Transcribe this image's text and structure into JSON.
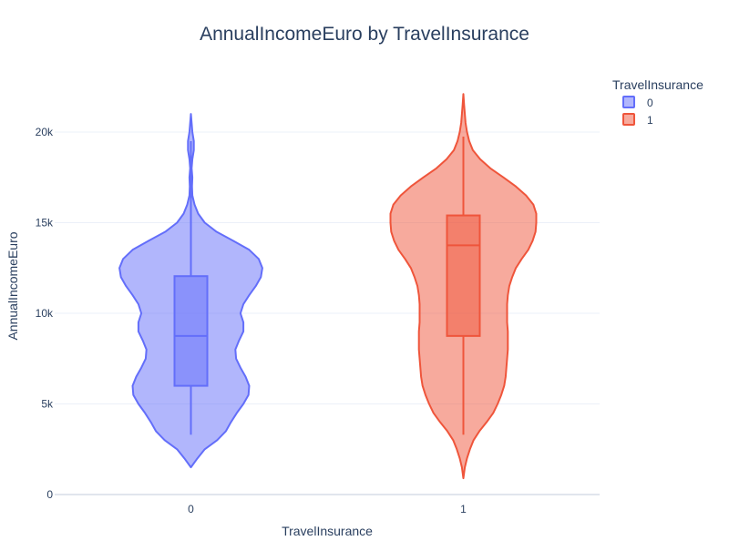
{
  "chart_data": {
    "type": "violin",
    "title": "AnnualIncomeEuro by TravelInsurance",
    "xlabel": "TravelInsurance",
    "ylabel": "AnnualIncomeEuro",
    "ylim": [
      0,
      22000
    ],
    "yticks": [
      {
        "value": 0,
        "label": "0"
      },
      {
        "value": 5000,
        "label": "5k"
      },
      {
        "value": 10000,
        "label": "10k"
      },
      {
        "value": 15000,
        "label": "15k"
      },
      {
        "value": 20000,
        "label": "20k"
      }
    ],
    "categories": [
      "0",
      "1"
    ],
    "grid": true,
    "legend": {
      "title": "TravelInsurance",
      "position": "top-right"
    },
    "series": [
      {
        "name": "0",
        "category": "0",
        "color": "#636efa",
        "fill": "rgba(99,110,250,0.5)",
        "range": [
          1500,
          21000
        ],
        "box": {
          "lowerfence": 3300,
          "q1": 6000,
          "median": 8750,
          "q3": 12050,
          "upperfence": 19500
        },
        "density_profile": [
          [
            1500,
            0.0
          ],
          [
            2000,
            0.09
          ],
          [
            2500,
            0.19
          ],
          [
            3000,
            0.36
          ],
          [
            3500,
            0.48
          ],
          [
            4000,
            0.55
          ],
          [
            4500,
            0.63
          ],
          [
            5000,
            0.72
          ],
          [
            5500,
            0.79
          ],
          [
            6000,
            0.8
          ],
          [
            6500,
            0.75
          ],
          [
            7000,
            0.68
          ],
          [
            7500,
            0.62
          ],
          [
            8000,
            0.61
          ],
          [
            8500,
            0.66
          ],
          [
            9000,
            0.72
          ],
          [
            9500,
            0.72
          ],
          [
            10000,
            0.68
          ],
          [
            10500,
            0.72
          ],
          [
            11000,
            0.8
          ],
          [
            11500,
            0.89
          ],
          [
            12000,
            0.96
          ],
          [
            12500,
            0.98
          ],
          [
            13000,
            0.93
          ],
          [
            13500,
            0.8
          ],
          [
            14000,
            0.58
          ],
          [
            14500,
            0.35
          ],
          [
            15000,
            0.19
          ],
          [
            15500,
            0.1
          ],
          [
            16000,
            0.05
          ],
          [
            16500,
            0.02
          ],
          [
            17000,
            0.015
          ],
          [
            17500,
            0.02
          ],
          [
            18000,
            0.01
          ],
          [
            18500,
            0.02
          ],
          [
            19000,
            0.04
          ],
          [
            19500,
            0.04
          ],
          [
            20000,
            0.02
          ],
          [
            20500,
            0.01
          ],
          [
            21000,
            0.0
          ]
        ]
      },
      {
        "name": "1",
        "category": "1",
        "color": "#ef553b",
        "fill": "rgba(239,85,59,0.5)",
        "range": [
          900,
          22100
        ],
        "box": {
          "lowerfence": 3300,
          "q1": 8750,
          "median": 13750,
          "q3": 15400,
          "upperfence": 19750
        },
        "density_profile": [
          [
            900,
            0.0
          ],
          [
            1500,
            0.02
          ],
          [
            2000,
            0.05
          ],
          [
            2500,
            0.09
          ],
          [
            3000,
            0.14
          ],
          [
            3500,
            0.22
          ],
          [
            4000,
            0.32
          ],
          [
            4500,
            0.41
          ],
          [
            5000,
            0.47
          ],
          [
            5500,
            0.52
          ],
          [
            6000,
            0.56
          ],
          [
            6500,
            0.58
          ],
          [
            7000,
            0.59
          ],
          [
            7500,
            0.6
          ],
          [
            8000,
            0.61
          ],
          [
            8500,
            0.61
          ],
          [
            9000,
            0.61
          ],
          [
            9500,
            0.6
          ],
          [
            10000,
            0.6
          ],
          [
            10500,
            0.6
          ],
          [
            11000,
            0.61
          ],
          [
            11500,
            0.63
          ],
          [
            12000,
            0.67
          ],
          [
            12500,
            0.72
          ],
          [
            13000,
            0.8
          ],
          [
            13500,
            0.89
          ],
          [
            14000,
            0.95
          ],
          [
            14500,
            0.99
          ],
          [
            15000,
            1.0
          ],
          [
            15500,
            1.0
          ],
          [
            16000,
            0.96
          ],
          [
            16500,
            0.86
          ],
          [
            17000,
            0.72
          ],
          [
            17500,
            0.55
          ],
          [
            18000,
            0.37
          ],
          [
            18500,
            0.23
          ],
          [
            19000,
            0.13
          ],
          [
            19500,
            0.08
          ],
          [
            20000,
            0.05
          ],
          [
            20500,
            0.03
          ],
          [
            21000,
            0.02
          ],
          [
            21500,
            0.01
          ],
          [
            22100,
            0.0
          ]
        ]
      }
    ]
  }
}
